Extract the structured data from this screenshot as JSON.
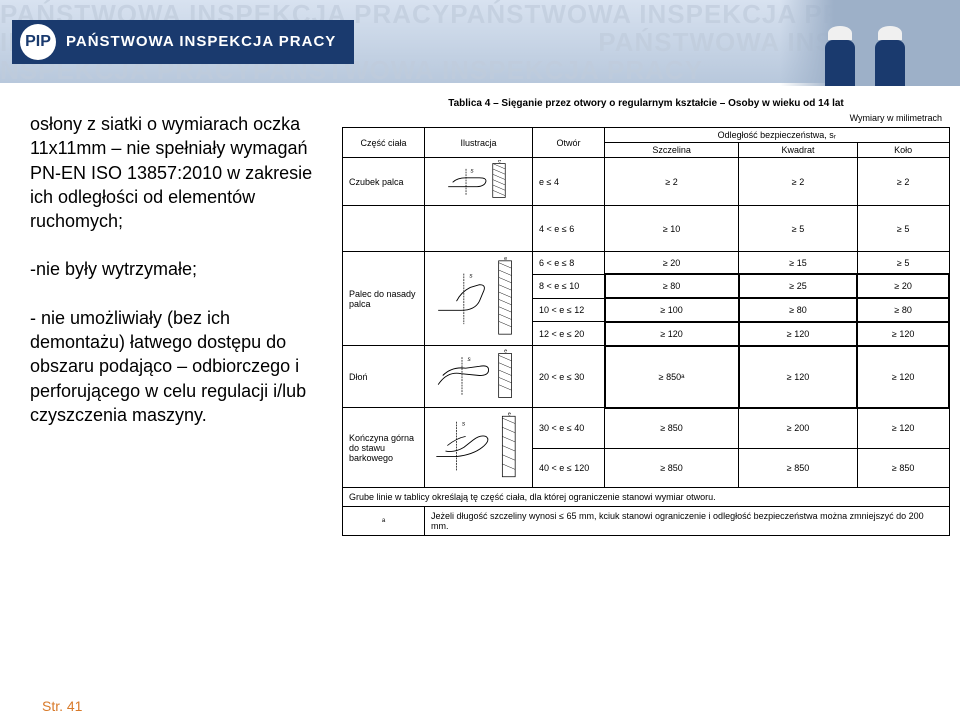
{
  "header": {
    "watermark_line1": "PAŃSTWOWA INSPEKCJA PRACY",
    "watermark_line2": "INSPEKCJA PRACY",
    "logo_abbrev": "PIP",
    "logo_text": "PAŃSTWOWA INSPEKCJA PRACY"
  },
  "left_text": {
    "p1": "osłony z siatki o wymiarach oczka 11x11mm – nie spełniały wymagań PN-EN ISO 13857:2010 w zakresie ich odległości od elementów ruchomych;",
    "p2": "-nie były wytrzymałe;",
    "p3": "- nie umożliwiały (bez ich demontażu) łatwego dostępu do obszaru podająco – odbiorczego i perforującego w celu regulacji i/lub czyszczenia maszyny."
  },
  "table": {
    "title": "Tablica 4 – Sięganie przez otwory o regularnym kształcie – Osoby w wieku od 14 lat",
    "subtitle": "Wymiary w milimetrach",
    "headers": {
      "part": "Część ciała",
      "illustration": "Ilustracja",
      "opening": "Otwór",
      "safety_dist": "Odległość bezpieczeństwa, sᵣ",
      "slot": "Szczelina",
      "square": "Kwadrat",
      "circle": "Koło"
    },
    "rows": [
      {
        "part": "Czubek palca",
        "opening": "e ≤ 4",
        "slot": "≥ 2",
        "square": "≥ 2",
        "circle": "≥ 2",
        "thick": false
      },
      {
        "part": "",
        "opening": "4 < e ≤ 6",
        "slot": "≥ 10",
        "square": "≥ 5",
        "circle": "≥ 5",
        "thick": false
      },
      {
        "part": "Palec do nasady palca",
        "opening": "6 < e ≤ 8",
        "slot": "≥ 20",
        "square": "≥ 15",
        "circle": "≥ 5",
        "thick": false
      },
      {
        "part": "",
        "opening": "8 < e ≤ 10",
        "slot": "≥ 80",
        "square": "≥ 25",
        "circle": "≥ 20",
        "thick": true
      },
      {
        "part": "",
        "opening": "10 < e ≤ 12",
        "slot": "≥ 100",
        "square": "≥ 80",
        "circle": "≥ 80",
        "thick": true
      },
      {
        "part": "",
        "opening": "12 < e ≤ 20",
        "slot": "≥ 120",
        "square": "≥ 120",
        "circle": "≥ 120",
        "thick": true
      },
      {
        "part": "Dłoń",
        "opening": "20 < e ≤ 30",
        "slot": "≥ 850ᵃ",
        "square": "≥ 120",
        "circle": "≥ 120",
        "thick": true
      },
      {
        "part": "Kończyna górna do stawu barkowego",
        "opening": "30 < e ≤ 40",
        "slot": "≥ 850",
        "square": "≥ 200",
        "circle": "≥ 120",
        "thick": false
      },
      {
        "part": "",
        "opening": "40 < e ≤ 120",
        "slot": "≥ 850",
        "square": "≥ 850",
        "circle": "≥ 850",
        "thick": false
      }
    ],
    "footer1": "Grube linie w tablicy określają tę część ciała, dla której ograniczenie stanowi wymiar otworu.",
    "footer2_label": "ᵃ",
    "footer2": "Jeżeli długość szczeliny wynosi ≤ 65 mm, kciuk stanowi ograniczenie i odległość bezpieczeństwa można zmniejszyć do 200 mm."
  },
  "page_label": "Str. 41",
  "colors": {
    "header_dark": "#1a3a6e",
    "header_light": "#d8e2f0",
    "accent": "#d87a2a"
  }
}
